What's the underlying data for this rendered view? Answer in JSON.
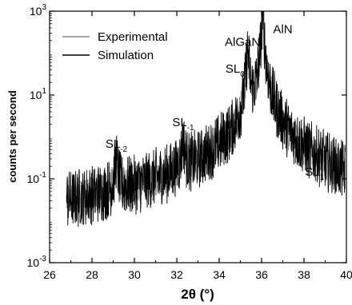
{
  "chart_data": {
    "type": "line",
    "xlabel": "2θ (°)",
    "ylabel": "counts per second",
    "xlim": [
      26,
      40
    ],
    "ylim": [
      0.001,
      1000
    ],
    "yscale": "log",
    "x_ticks": [
      "26",
      "28",
      "30",
      "32",
      "34",
      "36",
      "38",
      "40"
    ],
    "y_ticks": [
      {
        "base": "10",
        "exp": "3"
      },
      {
        "base": "10",
        "exp": "1"
      },
      {
        "base": "10",
        "exp": "-1"
      },
      {
        "base": "10",
        "exp": "-3"
      }
    ],
    "legend_position": "top-left",
    "series": [
      {
        "name": "Experimental",
        "color": "#8c8c8c",
        "x_range": [
          26.8,
          39.95
        ],
        "baseline": 0.0035,
        "peaks": [
          {
            "x": 29.15,
            "y": 0.19
          },
          {
            "x": 32.3,
            "y": 0.6
          },
          {
            "x": 35.35,
            "y": 100
          },
          {
            "x": 36.05,
            "y": 600
          },
          {
            "x": 38.6,
            "y": 0.035
          }
        ]
      },
      {
        "name": "Simulation",
        "color": "#000000",
        "x_range": [
          26.8,
          39.95
        ],
        "baseline": 0.0013,
        "peaks": [
          {
            "x": 29.15,
            "y": 0.22
          },
          {
            "x": 32.3,
            "y": 0.62
          },
          {
            "x": 35.35,
            "y": 110
          },
          {
            "x": 36.05,
            "y": 650
          },
          {
            "x": 38.6,
            "y": 0.04
          }
        ]
      }
    ],
    "annotations": [
      {
        "id": "sl-2",
        "text": "SL",
        "sub": "-2",
        "x": 29.15,
        "y": 0.55
      },
      {
        "id": "sl-1",
        "text": "SL",
        "sub": "-1",
        "x": 32.3,
        "y": 1.8
      },
      {
        "id": "algan",
        "text": "AlGaN",
        "sub": "",
        "x": 35.1,
        "y": 150
      },
      {
        "id": "sl0",
        "text": "SL",
        "sub": "0",
        "x": 34.75,
        "y": 34
      },
      {
        "id": "aln",
        "text": "AlN",
        "sub": "",
        "x": 37.0,
        "y": 300
      },
      {
        "id": "sl1",
        "text": "SL",
        "sub": "1",
        "x": 38.5,
        "y": 0.12
      }
    ]
  }
}
